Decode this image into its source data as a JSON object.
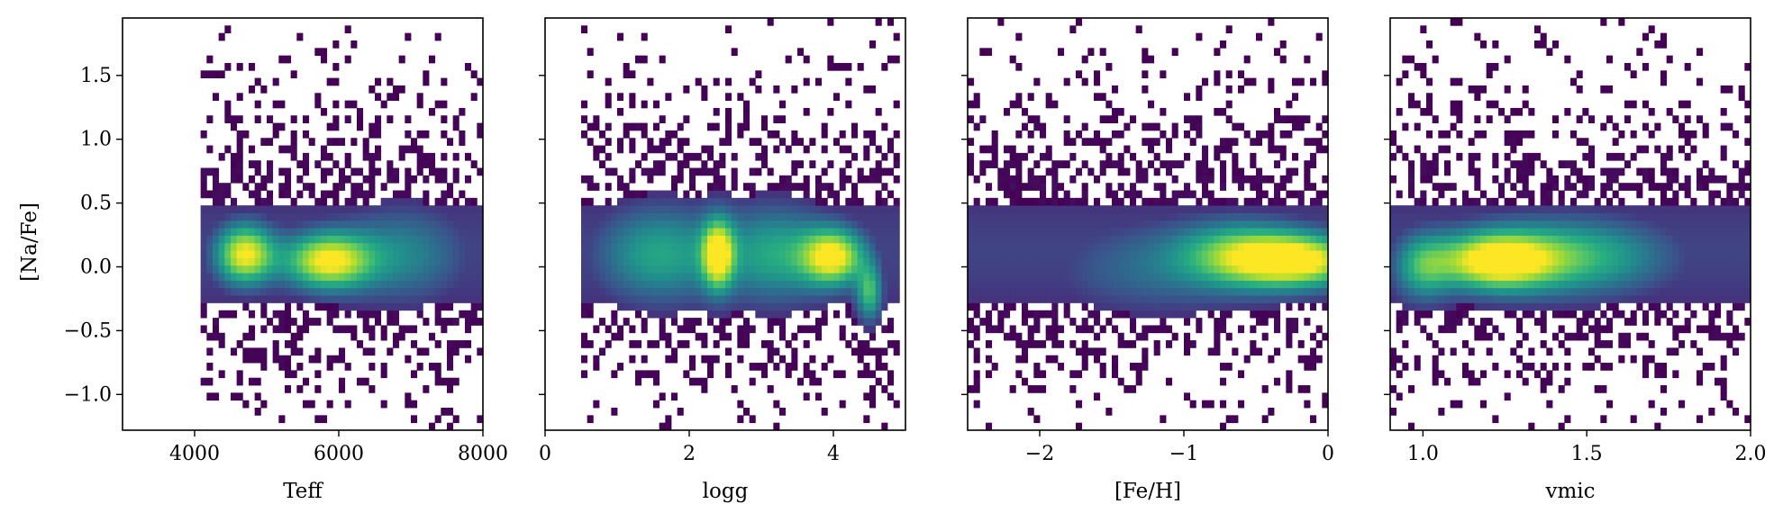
{
  "chart_data": {
    "type": "heatmap",
    "shared_y": true,
    "ylabel": "[Na/Fe]",
    "ylim": [
      -1.28,
      1.95
    ],
    "yticks": [
      -1.0,
      -0.5,
      0.0,
      0.5,
      1.0,
      1.5
    ],
    "ytick_labels": [
      "−1.0",
      "−0.5",
      "0.0",
      "0.5",
      "1.0",
      "1.5"
    ],
    "colormap": "viridis",
    "colors": {
      "low": "#440154",
      "mid": "#21918c",
      "high": "#fde725"
    },
    "panels": [
      {
        "xlabel": "Teff",
        "xlim": [
          3000,
          8000
        ],
        "xticks": [
          4000,
          6000,
          8000
        ],
        "xtick_labels": [
          "4000",
          "6000",
          "8000"
        ],
        "data_extent": [
          4050,
          8000
        ],
        "density_peaks": [
          {
            "x": 4700,
            "y": 0.1,
            "sx": 280,
            "sy": 0.16,
            "w": 1.0
          },
          {
            "x": 5850,
            "y": 0.05,
            "sx": 420,
            "sy": 0.15,
            "w": 1.0
          },
          {
            "x": 6900,
            "y": 0.1,
            "sx": 600,
            "sy": 0.25,
            "w": 0.35
          }
        ]
      },
      {
        "xlabel": "logg",
        "xlim": [
          0,
          5
        ],
        "xticks": [
          0,
          2,
          4
        ],
        "xtick_labels": [
          "0",
          "2",
          "4"
        ],
        "data_extent": [
          0.5,
          4.95
        ],
        "density_peaks": [
          {
            "x": 2.4,
            "y": 0.1,
            "sx": 0.15,
            "sy": 0.18,
            "w": 1.0
          },
          {
            "x": 4.0,
            "y": 0.08,
            "sx": 0.3,
            "sy": 0.15,
            "w": 1.0
          },
          {
            "x": 4.5,
            "y": -0.2,
            "sx": 0.12,
            "sy": 0.15,
            "w": 0.6
          },
          {
            "x": 1.6,
            "y": 0.1,
            "sx": 0.6,
            "sy": 0.25,
            "w": 0.5
          },
          {
            "x": 3.2,
            "y": 0.1,
            "sx": 0.5,
            "sy": 0.25,
            "w": 0.5
          }
        ]
      },
      {
        "xlabel": "[Fe/H]",
        "xlim": [
          -2.5,
          0
        ],
        "xticks": [
          -2,
          -1,
          0
        ],
        "xtick_labels": [
          "−2",
          "−1",
          "0"
        ],
        "data_extent": [
          -2.5,
          0
        ],
        "density_peaks": [
          {
            "x": -0.2,
            "y": 0.05,
            "sx": 0.3,
            "sy": 0.14,
            "w": 1.0
          },
          {
            "x": -0.6,
            "y": 0.1,
            "sx": 0.3,
            "sy": 0.17,
            "w": 0.6
          },
          {
            "x": -1.2,
            "y": 0.0,
            "sx": 0.5,
            "sy": 0.25,
            "w": 0.25
          }
        ]
      },
      {
        "xlabel": "vmic",
        "xlim": [
          0.9,
          2.0
        ],
        "xticks": [
          1.0,
          1.5,
          2.0
        ],
        "xtick_labels": [
          "1.0",
          "1.5",
          "2.0"
        ],
        "data_extent": [
          0.9,
          2.0
        ],
        "density_peaks": [
          {
            "x": 1.22,
            "y": 0.05,
            "sx": 0.12,
            "sy": 0.15,
            "w": 1.0
          },
          {
            "x": 1.45,
            "y": 0.08,
            "sx": 0.2,
            "sy": 0.2,
            "w": 0.6
          },
          {
            "x": 1.0,
            "y": 0.0,
            "sx": 0.06,
            "sy": 0.18,
            "w": 0.5
          }
        ]
      }
    ]
  }
}
